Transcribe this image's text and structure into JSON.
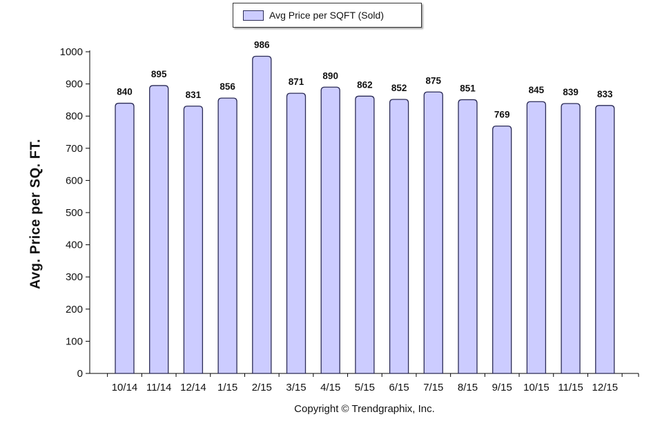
{
  "legend": {
    "label": "Avg Price per SQFT (Sold)"
  },
  "copyright": "Copyright © Trendgraphix, Inc.",
  "colors": {
    "bar_fill": "#ccccff",
    "bar_stroke": "#2b2b55",
    "axis": "#000000"
  },
  "chart_data": {
    "type": "bar",
    "title": "",
    "xlabel": "",
    "ylabel": "Avg. Price per SQ. FT.",
    "categories": [
      "10/14",
      "11/14",
      "12/14",
      "1/15",
      "2/15",
      "3/15",
      "4/15",
      "5/15",
      "6/15",
      "7/15",
      "8/15",
      "9/15",
      "10/15",
      "11/15",
      "12/15"
    ],
    "series": [
      {
        "name": "Avg Price per SQFT (Sold)",
        "values": [
          840,
          895,
          831,
          856,
          986,
          871,
          890,
          862,
          852,
          875,
          851,
          769,
          845,
          839,
          833
        ]
      }
    ],
    "ylim": [
      0,
      1000
    ],
    "yticks": [
      0,
      100,
      200,
      300,
      400,
      500,
      600,
      700,
      800,
      900,
      1000
    ],
    "grid": false,
    "legend_position": "top-center",
    "data_labels": true
  }
}
